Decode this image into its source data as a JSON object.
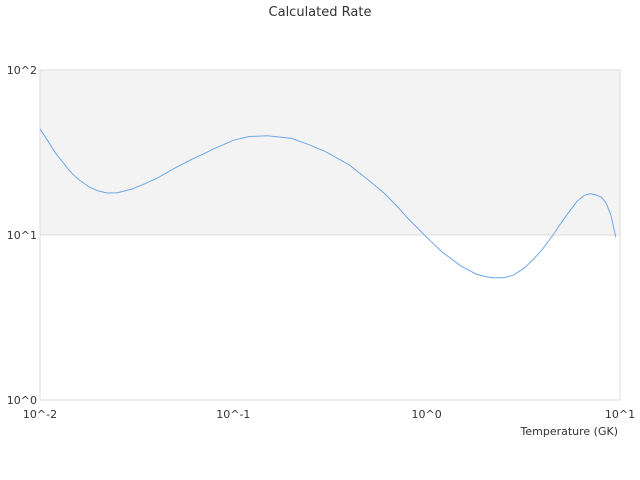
{
  "chart_data": {
    "type": "line",
    "title": "Calculated Rate",
    "xlabel": "Temperature (GK)",
    "ylabel": "",
    "x_scale": "log",
    "y_scale": "log",
    "xlim": [
      0.01,
      10
    ],
    "ylim": [
      1,
      100
    ],
    "x_ticks": [
      "10^-2",
      "10^-1",
      "10^0",
      "10^1"
    ],
    "y_ticks": [
      "10^0",
      "10^1",
      "10^2"
    ],
    "grid": true,
    "colors": {
      "line": "#6ea8e8",
      "shaded_band": "#f3f3f3",
      "grid": "#dddddd",
      "text": "#333333"
    },
    "series": [
      {
        "x": [
          0.01,
          0.011,
          0.012,
          0.013,
          0.014,
          0.015,
          0.016,
          0.018,
          0.02,
          0.022,
          0.025,
          0.03,
          0.035,
          0.04,
          0.05,
          0.06,
          0.07,
          0.08,
          0.09,
          0.1,
          0.12,
          0.15,
          0.2,
          0.25,
          0.3,
          0.4,
          0.5,
          0.6,
          0.7,
          0.8,
          1.0,
          1.2,
          1.5,
          1.8,
          2.0,
          2.2,
          2.5,
          2.8,
          3.2,
          3.6,
          4.0,
          4.5,
          5.0,
          5.5,
          6.0,
          6.5,
          7.0,
          7.5,
          8.0,
          8.5,
          9.0,
          9.5
        ],
        "y": [
          44.0,
          37.0,
          31.5,
          28.0,
          25.0,
          23.0,
          21.5,
          19.5,
          18.5,
          18.0,
          18.0,
          19.0,
          20.5,
          22.0,
          25.5,
          28.5,
          31.0,
          33.5,
          35.5,
          37.5,
          39.5,
          40.0,
          38.5,
          35.0,
          32.0,
          26.5,
          21.5,
          18.0,
          15.0,
          12.6,
          9.7,
          7.9,
          6.5,
          5.8,
          5.6,
          5.5,
          5.5,
          5.7,
          6.3,
          7.2,
          8.3,
          10.0,
          12.0,
          14.0,
          16.0,
          17.3,
          17.8,
          17.5,
          17.0,
          15.5,
          13.0,
          9.7
        ]
      }
    ]
  }
}
